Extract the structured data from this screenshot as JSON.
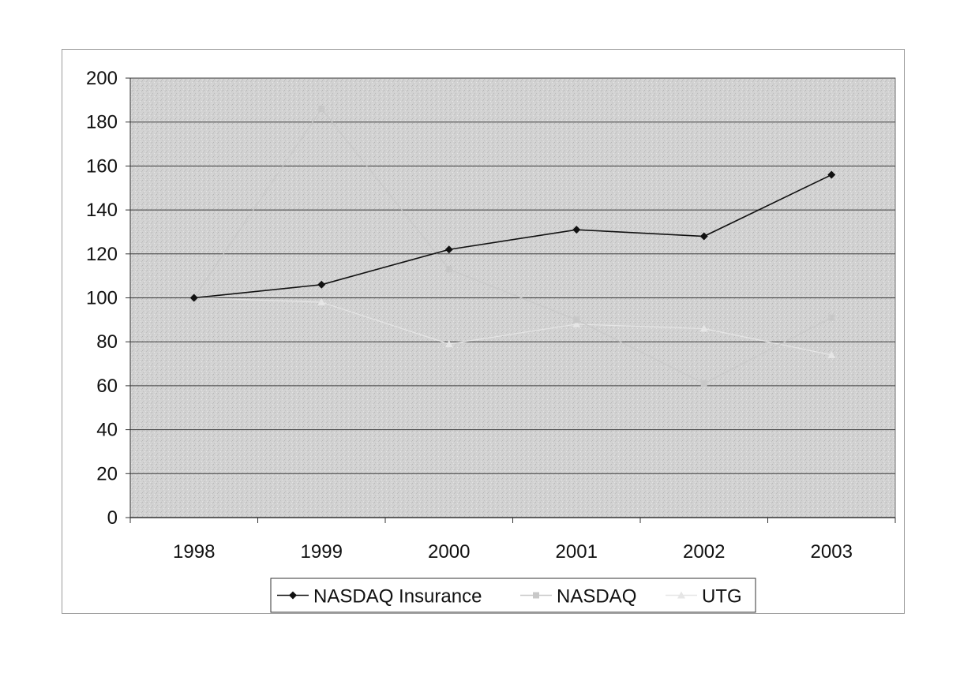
{
  "chart_data": {
    "type": "line",
    "title": "",
    "xlabel": "",
    "ylabel": "",
    "categories": [
      "1998",
      "1999",
      "2000",
      "2001",
      "2002",
      "2003"
    ],
    "ylim": [
      0,
      200
    ],
    "yticks": [
      "0",
      "20",
      "40",
      "60",
      "80",
      "100",
      "120",
      "140",
      "160",
      "180",
      "200"
    ],
    "grid": true,
    "legend_position": "bottom",
    "series": [
      {
        "name": "NASDAQ Insurance",
        "values": [
          100,
          106,
          122,
          131,
          128,
          156
        ],
        "color": "#111111",
        "marker": "diamond"
      },
      {
        "name": "NASDAQ",
        "values": [
          100,
          186,
          113,
          90,
          61,
          91
        ],
        "color": "#c8c8c8",
        "marker": "square"
      },
      {
        "name": "UTG",
        "values": [
          100,
          98,
          79,
          88,
          86,
          74
        ],
        "color": "#e6e6e6",
        "marker": "triangle"
      }
    ]
  }
}
